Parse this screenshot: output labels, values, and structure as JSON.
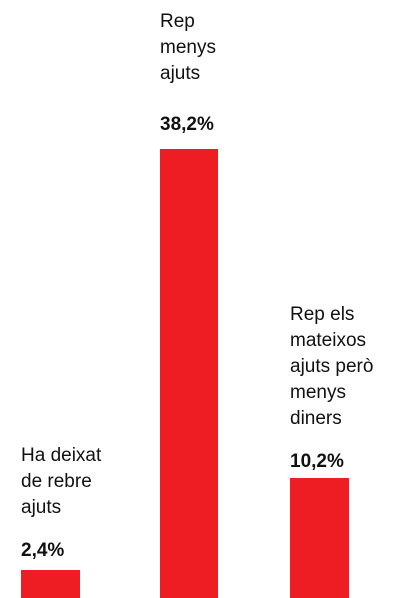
{
  "chart_data": {
    "type": "bar",
    "categories": [
      "Ha deixat\nde rebre\najuts",
      "Rep\nmenys\najuts",
      "Rep els\nmateixos\najuts però\nmenys\ndiners"
    ],
    "values": [
      2.4,
      38.2,
      10.2
    ],
    "value_labels": [
      "2,4%",
      "38,2%",
      "10,2%"
    ],
    "bar_color": "#ee1d24",
    "title": "",
    "xlabel": "",
    "ylabel": "",
    "ylim": [
      0,
      38.2
    ],
    "grid": false,
    "legend": "none"
  }
}
